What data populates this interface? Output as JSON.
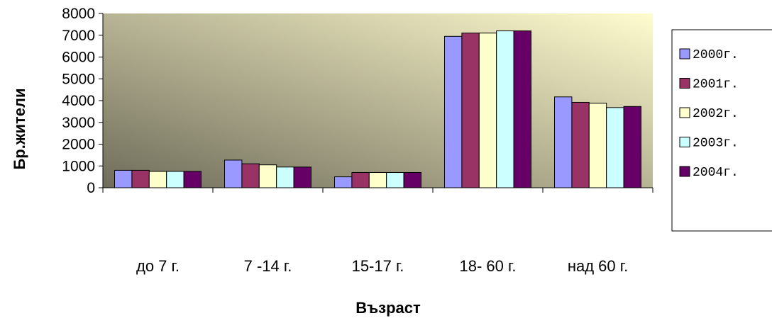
{
  "chart_data": {
    "type": "bar",
    "title": "",
    "xlabel": "Възраст",
    "ylabel": "Бр.жители",
    "categories": [
      "до 7 г.",
      "7 -14 г.",
      "15-17 г.",
      "18- 60 г.",
      "над 60 г."
    ],
    "ylim": [
      0,
      8000
    ],
    "yticks": [
      0,
      1000,
      2000,
      3000,
      4000,
      5000,
      6000,
      7000,
      8000
    ],
    "legend_position": "right",
    "grid": false,
    "series": [
      {
        "name": "2000г.",
        "color": "#9999ff",
        "values": [
          800,
          1270,
          500,
          6950,
          4170
        ]
      },
      {
        "name": "2001г.",
        "color": "#993366",
        "values": [
          800,
          1100,
          700,
          7100,
          3920
        ]
      },
      {
        "name": "2002г.",
        "color": "#ffffcc",
        "values": [
          750,
          1050,
          700,
          7100,
          3880
        ]
      },
      {
        "name": "2003г.",
        "color": "#ccffff",
        "values": [
          750,
          950,
          700,
          7200,
          3680
        ]
      },
      {
        "name": "2004г.",
        "color": "#660066",
        "values": [
          750,
          950,
          700,
          7200,
          3730
        ]
      }
    ],
    "plot_gradient": {
      "from": "#6f6c5a",
      "to": "#fffccf"
    }
  }
}
